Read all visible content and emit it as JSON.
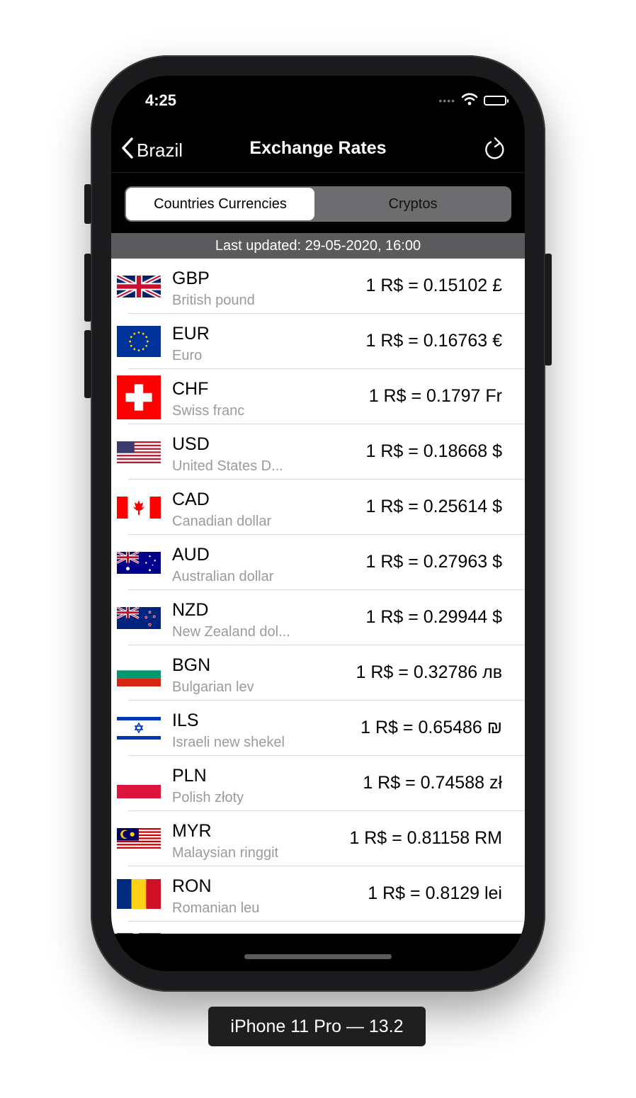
{
  "status_bar": {
    "time": "4:25"
  },
  "nav": {
    "back_label": "Brazil",
    "title": "Exchange Rates"
  },
  "segmented": {
    "items": [
      "Countries Currencies",
      "Cryptos"
    ],
    "selected": "Countries Currencies"
  },
  "last_updated": "Last updated: 29-05-2020, 16:00",
  "rates": [
    {
      "code": "GBP",
      "name": "British pound",
      "rate": "1 R$ = 0.15102 £",
      "flag": "uk-flag-icon"
    },
    {
      "code": "EUR",
      "name": "Euro",
      "rate": "1 R$ = 0.16763 €",
      "flag": "eu-flag-icon"
    },
    {
      "code": "CHF",
      "name": "Swiss franc",
      "rate": "1 R$ = 0.1797 Fr",
      "flag": "swiss-flag-icon"
    },
    {
      "code": "USD",
      "name": "United States D...",
      "rate": "1 R$ = 0.18668 $",
      "flag": "us-flag-icon"
    },
    {
      "code": "CAD",
      "name": "Canadian dollar",
      "rate": "1 R$ = 0.25614 $",
      "flag": "canada-flag-icon"
    },
    {
      "code": "AUD",
      "name": "Australian dollar",
      "rate": "1 R$ = 0.27963 $",
      "flag": "australia-flag-icon"
    },
    {
      "code": "NZD",
      "name": "New Zealand dol...",
      "rate": "1 R$ = 0.29944 $",
      "flag": "new-zealand-flag-icon"
    },
    {
      "code": "BGN",
      "name": "Bulgarian lev",
      "rate": "1 R$ = 0.32786 лв",
      "flag": "bulgaria-flag-icon"
    },
    {
      "code": "ILS",
      "name": "Israeli new shekel",
      "rate": "1 R$ = 0.65486 ₪",
      "flag": "israel-flag-icon"
    },
    {
      "code": "PLN",
      "name": "Polish złoty",
      "rate": "1 R$ = 0.74588 zł",
      "flag": "poland-flag-icon"
    },
    {
      "code": "MYR",
      "name": "Malaysian ringgit",
      "rate": "1 R$ = 0.81158 RM",
      "flag": "malaysia-flag-icon"
    },
    {
      "code": "RON",
      "name": "Romanian leu",
      "rate": "1 R$ = 0.8129 lei",
      "flag": "romania-flag-icon"
    }
  ],
  "device_label": "iPhone 11 Pro — 13.2"
}
